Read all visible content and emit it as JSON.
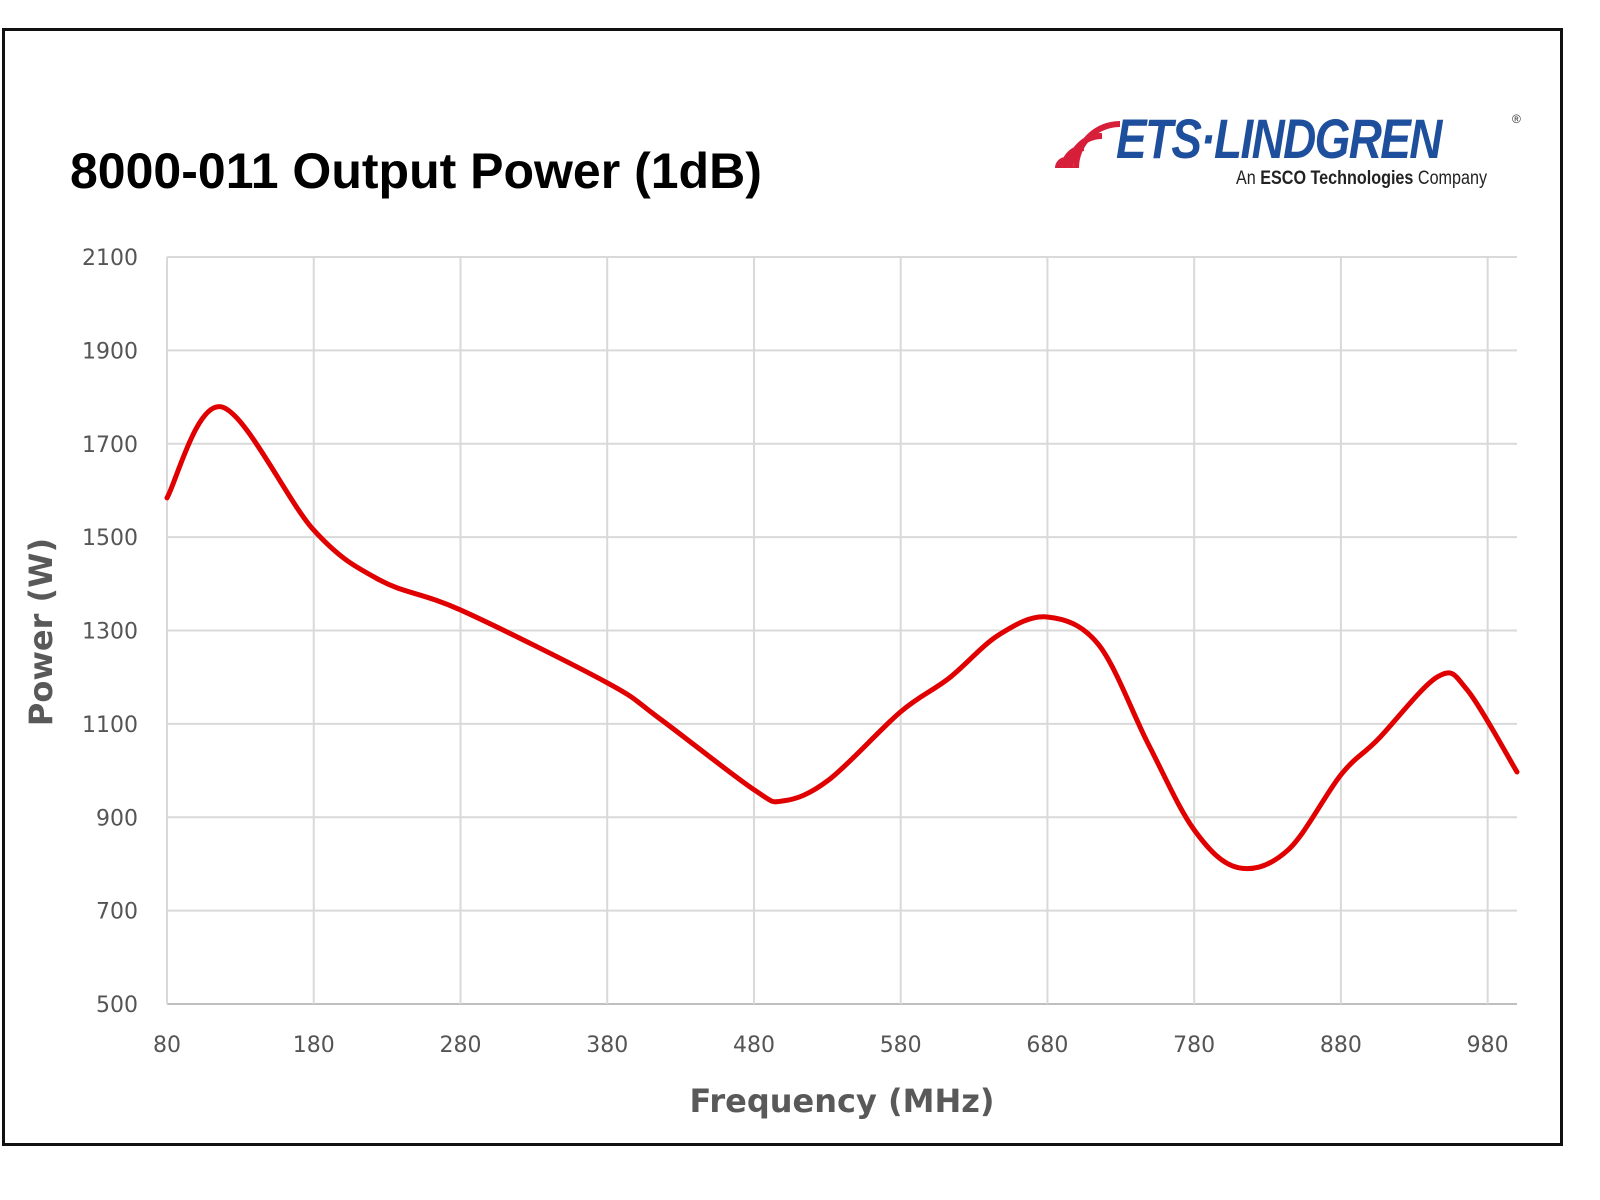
{
  "logo": {
    "brand": "ETS·LINDGREN",
    "registered": "®",
    "tagline_prefix": "An",
    "tagline_bold": "ESCO Technologies",
    "tagline_suffix": "Company"
  },
  "colors": {
    "line": "#e00000",
    "grid": "#d9d9d9",
    "brand_blue": "#1d4f9c",
    "brand_red": "#d71f3a"
  },
  "chart_data": {
    "type": "line",
    "title": "8000-011 Output Power (1dB)",
    "xlabel": "Frequency (MHz)",
    "ylabel": "Power (W)",
    "xlim": [
      80,
      1000
    ],
    "ylim": [
      500,
      2100
    ],
    "xticks": [
      80,
      180,
      280,
      380,
      480,
      580,
      680,
      780,
      880,
      980
    ],
    "yticks": [
      500,
      700,
      900,
      1100,
      1300,
      1500,
      1700,
      1900,
      2100
    ],
    "grid": true,
    "legend": "none",
    "series": [
      {
        "name": "Output Power",
        "x": [
          80,
          117,
          180,
          225,
          280,
          380,
          415,
          480,
          500,
          531,
          580,
          613,
          647,
          680,
          715,
          749,
          780,
          810,
          844,
          880,
          905,
          946,
          966,
          1000
        ],
        "y": [
          1584,
          1779,
          1515,
          1408,
          1344,
          1188,
          1113,
          959,
          935,
          980,
          1126,
          1198,
          1291,
          1329,
          1269,
          1055,
          873,
          792,
          830,
          991,
          1066,
          1201,
          1173,
          997
        ]
      }
    ]
  }
}
